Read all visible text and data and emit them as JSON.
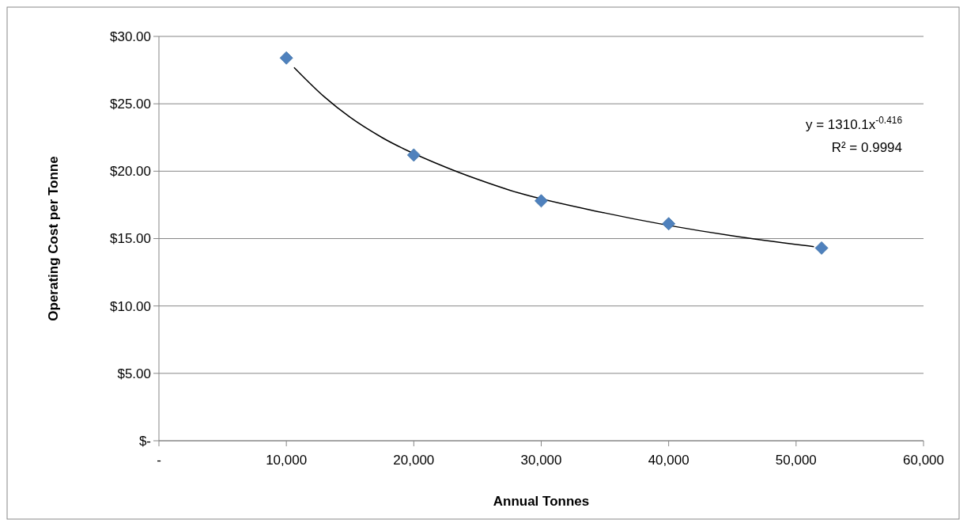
{
  "chart_data": {
    "type": "scatter",
    "xlabel": "Annual Tonnes",
    "ylabel": "Operating Cost per Tonne",
    "xlim": [
      0,
      60000
    ],
    "xticks": [
      {
        "value": 0,
        "label": "-"
      },
      {
        "value": 10000,
        "label": "10,000"
      },
      {
        "value": 20000,
        "label": "20,000"
      },
      {
        "value": 30000,
        "label": "30,000"
      },
      {
        "value": 40000,
        "label": "40,000"
      },
      {
        "value": 50000,
        "label": "50,000"
      },
      {
        "value": 60000,
        "label": "60,000"
      }
    ],
    "ylim": [
      0,
      30
    ],
    "yticks": [
      {
        "value": 0,
        "label": "$-"
      },
      {
        "value": 5,
        "label": "$5.00"
      },
      {
        "value": 10,
        "label": "$10.00"
      },
      {
        "value": 15,
        "label": "$15.00"
      },
      {
        "value": 20,
        "label": "$20.00"
      },
      {
        "value": 25,
        "label": "$25.00"
      },
      {
        "value": 30,
        "label": "$30.00"
      }
    ],
    "grid": "y",
    "series": [
      {
        "color": "#4f81bd",
        "marker": "diamond",
        "x": [
          10000,
          20000,
          30000,
          40000,
          52000
        ],
        "values": [
          28.4,
          21.2,
          17.8,
          16.1,
          14.3
        ]
      },
      {
        "type": "line",
        "color": "#000000",
        "line_style": "solid",
        "marker": "none",
        "x": [
          10600,
          13000,
          15000,
          17500,
          22500,
          25000,
          27500,
          35000,
          45000,
          51400
        ],
        "values": [
          27.7,
          25.5,
          24.0,
          22.5,
          20.3,
          19.4,
          18.6,
          16.9,
          15.2,
          14.4
        ]
      }
    ],
    "annotations": [
      "y = 1310.1x$^{-0.416}$",
      "R² = 0.9994"
    ]
  }
}
